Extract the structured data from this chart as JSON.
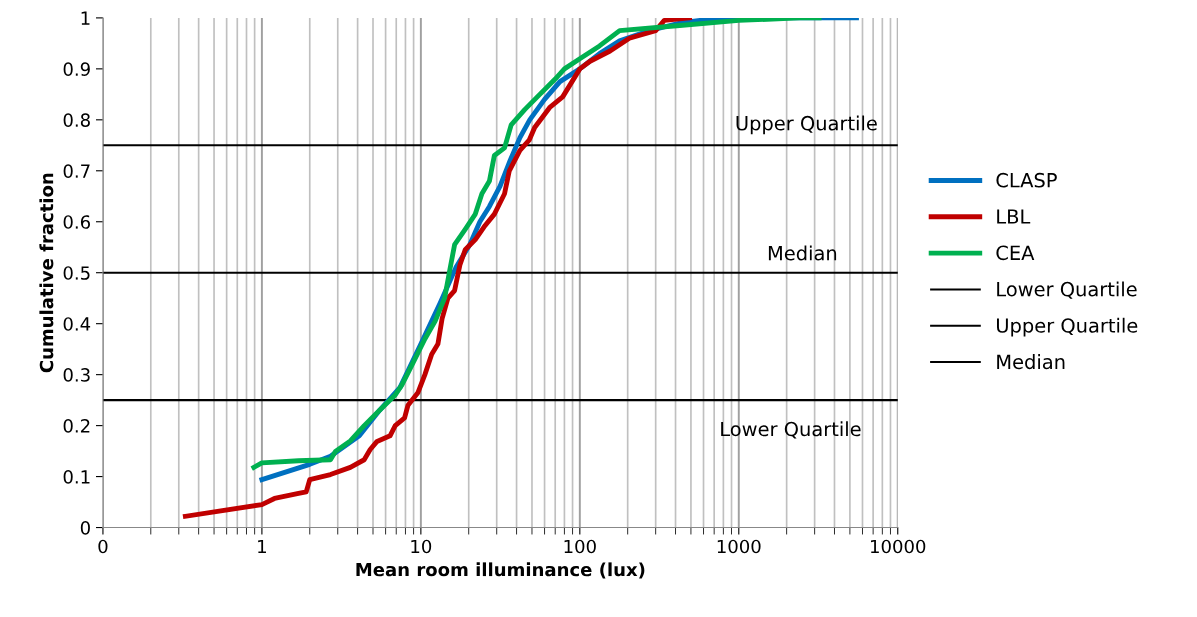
{
  "chart_data": {
    "type": "line",
    "xlabel": "Mean room illuminance (lux)",
    "ylabel": "Cumulative fraction",
    "log": "x",
    "grid": "x",
    "legend": "right",
    "line_style": "solid",
    "marker": "none",
    "xlim": [
      0.1,
      10000
    ],
    "xticks": [
      {
        "value": 0.1,
        "label": "0"
      },
      1,
      10,
      100,
      1000,
      10000
    ],
    "ylim": [
      0,
      1
    ],
    "yticks": [
      0,
      0.1,
      0.2,
      0.3,
      0.4,
      0.5,
      0.6,
      0.7,
      0.8,
      0.9,
      1
    ],
    "series": [
      {
        "name": "CLASP",
        "color": "#0070c0",
        "x": [
          1,
          2,
          2.7,
          4.1,
          5.5,
          7.4,
          10,
          13.2,
          16.6,
          20.3,
          23.5,
          27,
          31.5,
          36.4,
          42,
          48.4,
          60,
          75,
          100,
          133,
          178,
          275,
          425,
          760,
          2400,
          5500
        ],
        "values": [
          0.094,
          0.124,
          0.14,
          0.18,
          0.23,
          0.275,
          0.36,
          0.44,
          0.51,
          0.555,
          0.6,
          0.63,
          0.67,
          0.72,
          0.765,
          0.8,
          0.84,
          0.875,
          0.9,
          0.93,
          0.955,
          0.975,
          0.99,
          1,
          1,
          1
        ]
      },
      {
        "name": "LBL",
        "color": "#c00000",
        "x": [
          0.33,
          1,
          1.2,
          1.7,
          1.9,
          2,
          2.7,
          3.6,
          4.4,
          4.8,
          5.3,
          6.4,
          6.9,
          7.9,
          8.3,
          9.6,
          10.6,
          11.7,
          12.8,
          13.6,
          14.8,
          16.3,
          17.6,
          19,
          22,
          25,
          29,
          33.6,
          36,
          42,
          48,
          52,
          65,
          78,
          100,
          116,
          155,
          205,
          300,
          340,
          490
        ],
        "values": [
          0.022,
          0.045,
          0.057,
          0.067,
          0.07,
          0.094,
          0.104,
          0.118,
          0.133,
          0.153,
          0.169,
          0.18,
          0.2,
          0.215,
          0.24,
          0.265,
          0.3,
          0.34,
          0.36,
          0.41,
          0.45,
          0.465,
          0.515,
          0.545,
          0.565,
          0.59,
          0.615,
          0.655,
          0.7,
          0.74,
          0.76,
          0.785,
          0.825,
          0.845,
          0.9,
          0.915,
          0.935,
          0.96,
          0.975,
          0.995,
          1
        ]
      },
      {
        "name": "CEA",
        "color": "#00b050",
        "x": [
          0.89,
          1,
          1.7,
          2.7,
          2.9,
          3.6,
          4.4,
          5.5,
          6.9,
          7.6,
          8.5,
          10.6,
          12.3,
          14.1,
          15.2,
          16.3,
          19,
          22,
          24.2,
          27,
          29,
          33.6,
          37,
          45,
          56,
          70,
          80,
          100,
          133,
          178,
          425,
          1000,
          2400,
          3200
        ],
        "values": [
          0.118,
          0.127,
          0.131,
          0.133,
          0.149,
          0.17,
          0.2,
          0.23,
          0.26,
          0.28,
          0.31,
          0.37,
          0.405,
          0.45,
          0.505,
          0.555,
          0.585,
          0.615,
          0.655,
          0.68,
          0.73,
          0.745,
          0.79,
          0.82,
          0.85,
          0.88,
          0.9,
          0.92,
          0.945,
          0.975,
          0.985,
          0.995,
          1,
          1
        ]
      },
      {
        "name": "Lower Quartile",
        "color": "#000000",
        "type": "line",
        "x": [
          0.1,
          10000
        ],
        "values": [
          0.25,
          0.25
        ]
      },
      {
        "name": "Upper Quartile",
        "color": "#000000",
        "type": "line",
        "x": [
          0.1,
          10000
        ],
        "values": [
          0.75,
          0.75
        ]
      },
      {
        "name": "Median",
        "color": "#000000",
        "type": "line",
        "x": [
          0.1,
          10000
        ],
        "values": [
          0.5,
          0.5
        ]
      }
    ],
    "annotations": [
      "Upper Quartile",
      "Median",
      "Lower Quartile"
    ]
  }
}
